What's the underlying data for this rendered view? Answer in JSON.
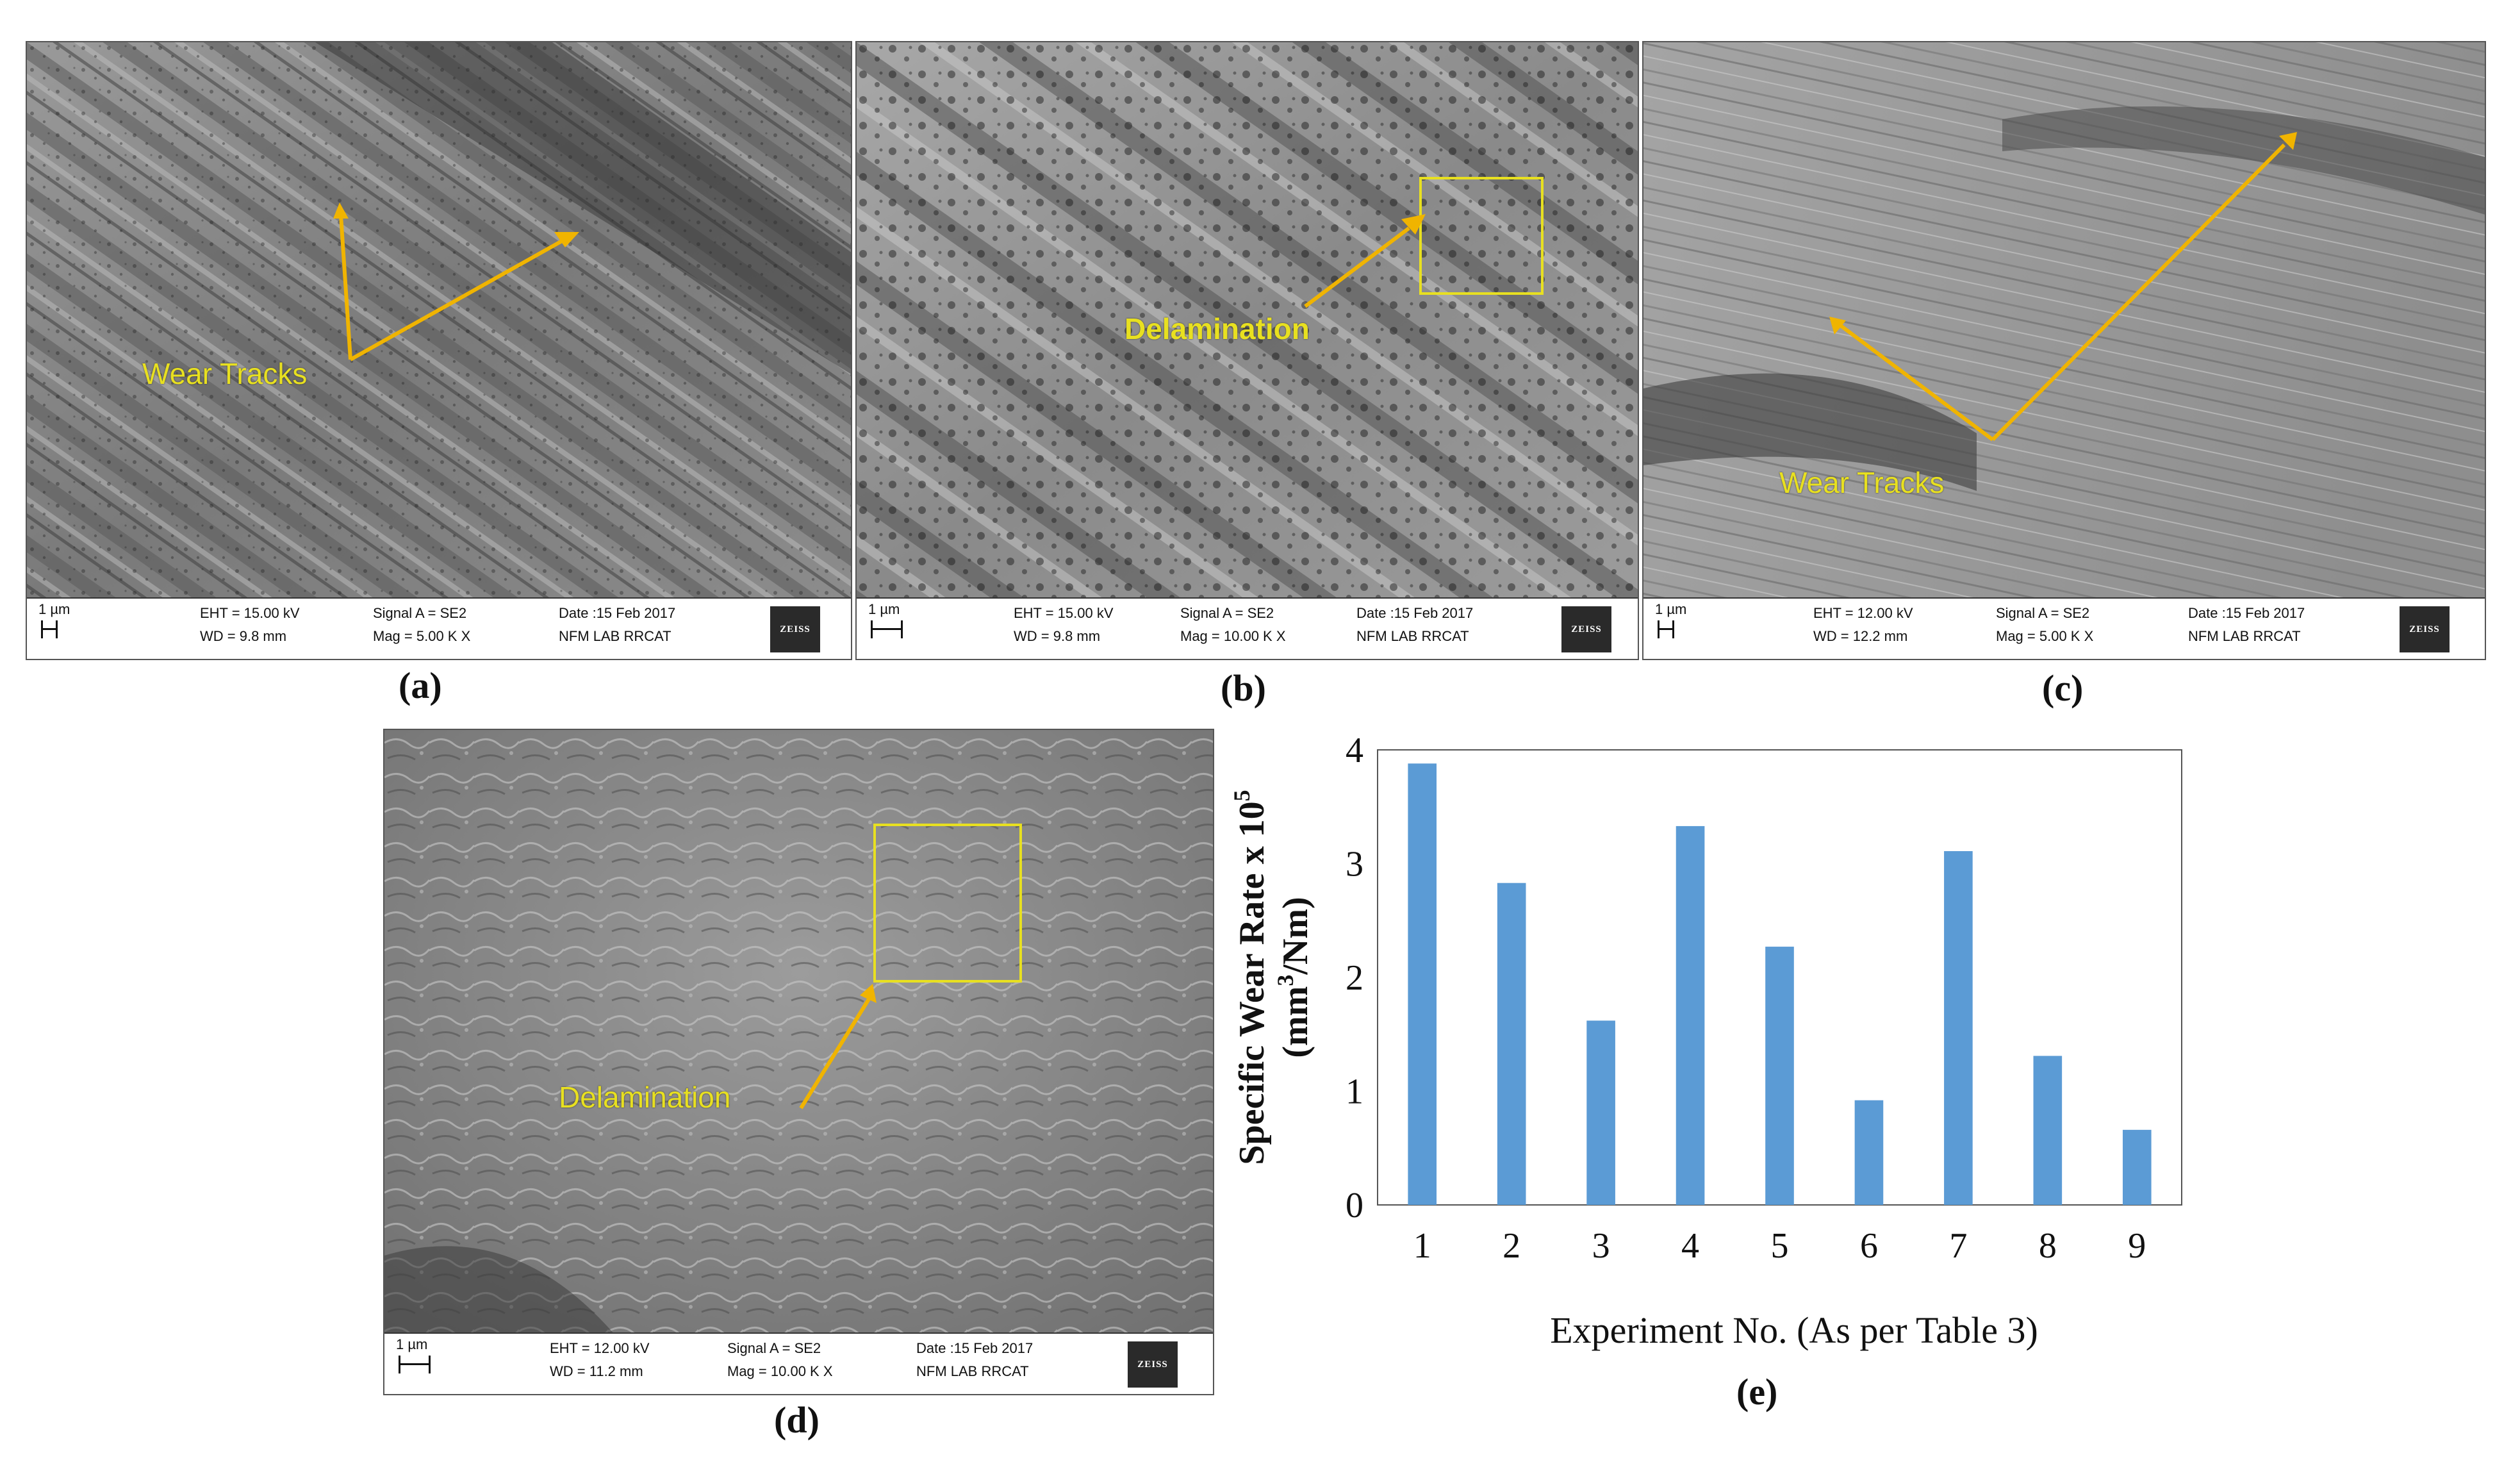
{
  "panels": {
    "a": {
      "caption": "(a)",
      "annotation": "Wear Tracks",
      "databar": {
        "scale": "1 µm",
        "eht": "EHT = 15.00 kV",
        "wd": "WD = 9.8 mm",
        "signal": "Signal A = SE2",
        "mag": "Mag =  5.00 K X",
        "date": "Date :15 Feb 2017",
        "lab": "NFM  LAB  RRCAT",
        "logo": "ZEISS"
      }
    },
    "b": {
      "caption": "(b)",
      "annotation": "Delamination",
      "databar": {
        "scale": "1 µm",
        "eht": "EHT = 15.00 kV",
        "wd": "WD = 9.8 mm",
        "signal": "Signal A = SE2",
        "mag": "Mag =  10.00 K X",
        "date": "Date :15 Feb 2017",
        "lab": "NFM  LAB  RRCAT",
        "logo": "ZEISS"
      }
    },
    "c": {
      "caption": "(c)",
      "annotation": "Wear Tracks",
      "databar": {
        "scale": "1 µm",
        "eht": "EHT = 12.00 kV",
        "wd": "WD = 12.2 mm",
        "signal": "Signal A = SE2",
        "mag": "Mag =  5.00 K X",
        "date": "Date :15 Feb 2017",
        "lab": "NFM  LAB  RRCAT",
        "logo": "ZEISS"
      }
    },
    "d": {
      "caption": "(d)",
      "annotation": "Delamination",
      "databar": {
        "scale": "1 µm",
        "eht": "EHT = 12.00 kV",
        "wd": "WD = 11.2 mm",
        "signal": "Signal A = SE2",
        "mag": "Mag =  10.00 K X",
        "date": "Date :15 Feb 2017",
        "lab": "NFM  LAB  RRCAT",
        "logo": "ZEISS"
      }
    },
    "e": {
      "caption": "(e)"
    }
  },
  "colors": {
    "bar": "#5b9bd5",
    "annotation": "#e8e020",
    "arrow": "#f0b400"
  },
  "chart_data": {
    "type": "bar",
    "categories": [
      "1",
      "2",
      "3",
      "4",
      "5",
      "6",
      "7",
      "8",
      "9"
    ],
    "values": [
      3.88,
      2.83,
      1.62,
      3.33,
      2.27,
      0.92,
      3.11,
      1.31,
      0.66
    ],
    "ylabel_line1": "Specific Wear Rate x 10",
    "ylabel_sup": "5",
    "ylabel_line2_a": "(mm",
    "ylabel_line2_sup": "3",
    "ylabel_line2_b": "/Nm)",
    "xlabel": "Experiment No. (As per Table 3)",
    "yticks": [
      "0",
      "1",
      "2",
      "3",
      "4"
    ],
    "ylim": [
      0,
      4
    ],
    "grid": false
  }
}
